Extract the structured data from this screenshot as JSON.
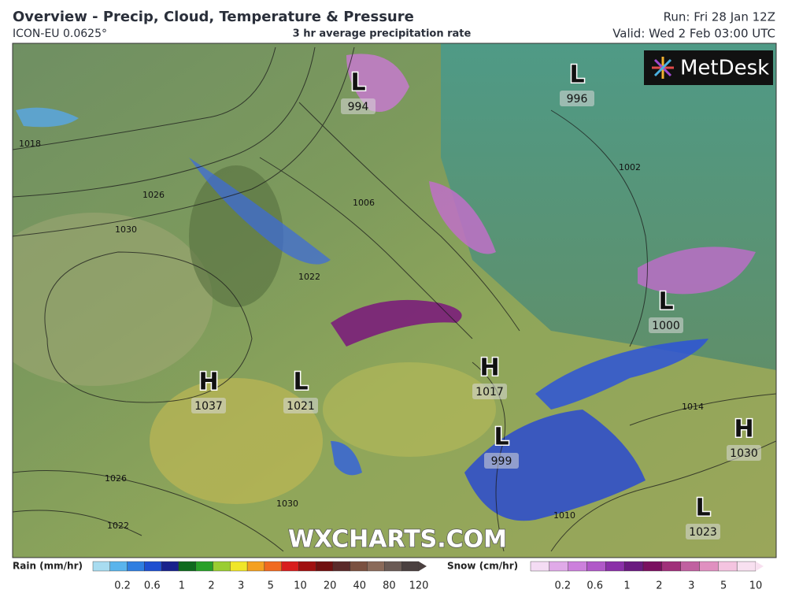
{
  "header": {
    "title": "Overview - Precip, Cloud, Temperature & Pressure",
    "model": "ICON-EU 0.0625°",
    "subtitle": "3 hr average precipitation rate",
    "run": "Run: Fri 28 Jan 12Z",
    "valid": "Valid: Wed 2 Feb 03:00 UTC"
  },
  "logo": "MetDesk",
  "watermark": "WXCHARTS.COM",
  "pressure_centers": [
    {
      "type": "L",
      "value": "994"
    },
    {
      "type": "L",
      "value": "996"
    },
    {
      "type": "L",
      "value": "1000"
    },
    {
      "type": "H",
      "value": "1017"
    },
    {
      "type": "L",
      "value": "999"
    },
    {
      "type": "H",
      "value": "1030"
    },
    {
      "type": "L",
      "value": "1023"
    },
    {
      "type": "H",
      "value": "1037"
    },
    {
      "type": "L",
      "value": "1021"
    }
  ],
  "isobar_labels": [
    "1018",
    "1026",
    "1030",
    "1022",
    "1006",
    "1002",
    "1014",
    "1010",
    "1026",
    "1022",
    "1030"
  ],
  "legend": {
    "rain": {
      "title": "Rain (mm/hr)",
      "ticks": [
        "0.2",
        "0.6",
        "1",
        "2",
        "3",
        "5",
        "10",
        "20",
        "40",
        "80",
        "120"
      ]
    },
    "snow": {
      "title": "Snow (cm/hr)",
      "ticks": [
        "0.2",
        "0.6",
        "1",
        "2",
        "3",
        "5",
        "10"
      ]
    }
  }
}
